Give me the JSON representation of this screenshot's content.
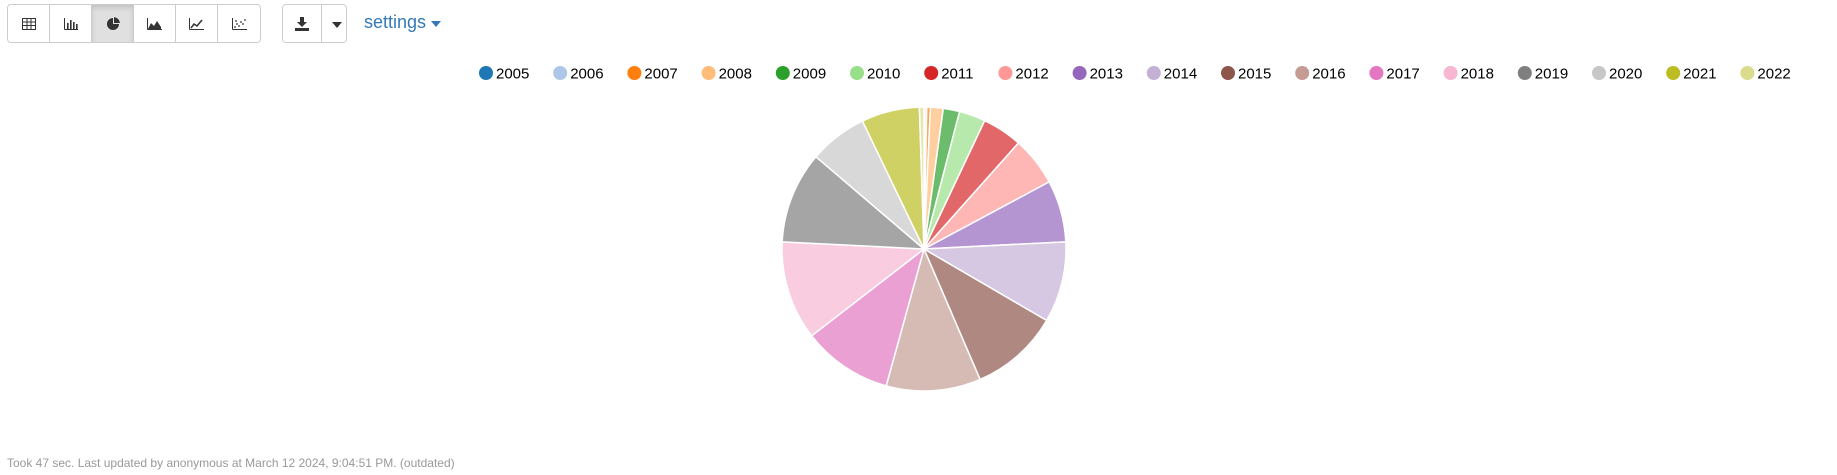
{
  "toolbar": {
    "views": [
      {
        "name": "table-view-button",
        "icon": "table-icon",
        "active": false
      },
      {
        "name": "bar-chart-button",
        "icon": "bar-chart-icon",
        "active": false
      },
      {
        "name": "pie-chart-button",
        "icon": "pie-chart-icon",
        "active": true
      },
      {
        "name": "area-chart-button",
        "icon": "area-chart-icon",
        "active": false
      },
      {
        "name": "line-chart-button",
        "icon": "line-chart-icon",
        "active": false
      },
      {
        "name": "scatter-chart-button",
        "icon": "scatter-chart-icon",
        "active": false
      }
    ],
    "download_icon": "download-icon",
    "settings_label": "settings"
  },
  "chart_data": {
    "type": "pie",
    "legend_position": "top-right",
    "categories": [
      "2005",
      "2006",
      "2007",
      "2008",
      "2009",
      "2010",
      "2011",
      "2012",
      "2013",
      "2014",
      "2015",
      "2016",
      "2017",
      "2018",
      "2019",
      "2020",
      "2021",
      "2022"
    ],
    "values": [
      0.1,
      0.2,
      0.4,
      1.4,
      1.8,
      2.9,
      4.4,
      5.4,
      6.8,
      8.9,
      9.8,
      10.4,
      9.9,
      10.9,
      10.1,
      6.4,
      6.4,
      0.5
    ],
    "colors": [
      "#1f77b4",
      "#aec7e8",
      "#ff7f0e",
      "#ffbb78",
      "#2ca02c",
      "#98df8a",
      "#d62728",
      "#ff9896",
      "#9467bd",
      "#c5b0d5",
      "#8c564b",
      "#c49c94",
      "#e377c2",
      "#f7b6d2",
      "#7f7f7f",
      "#c7c7c7",
      "#bcbd22",
      "#dbdb8d"
    ]
  },
  "footer": {
    "status": "Took 47 sec. Last updated by anonymous at March 12 2024, 9:04:51 PM. (outdated)"
  }
}
